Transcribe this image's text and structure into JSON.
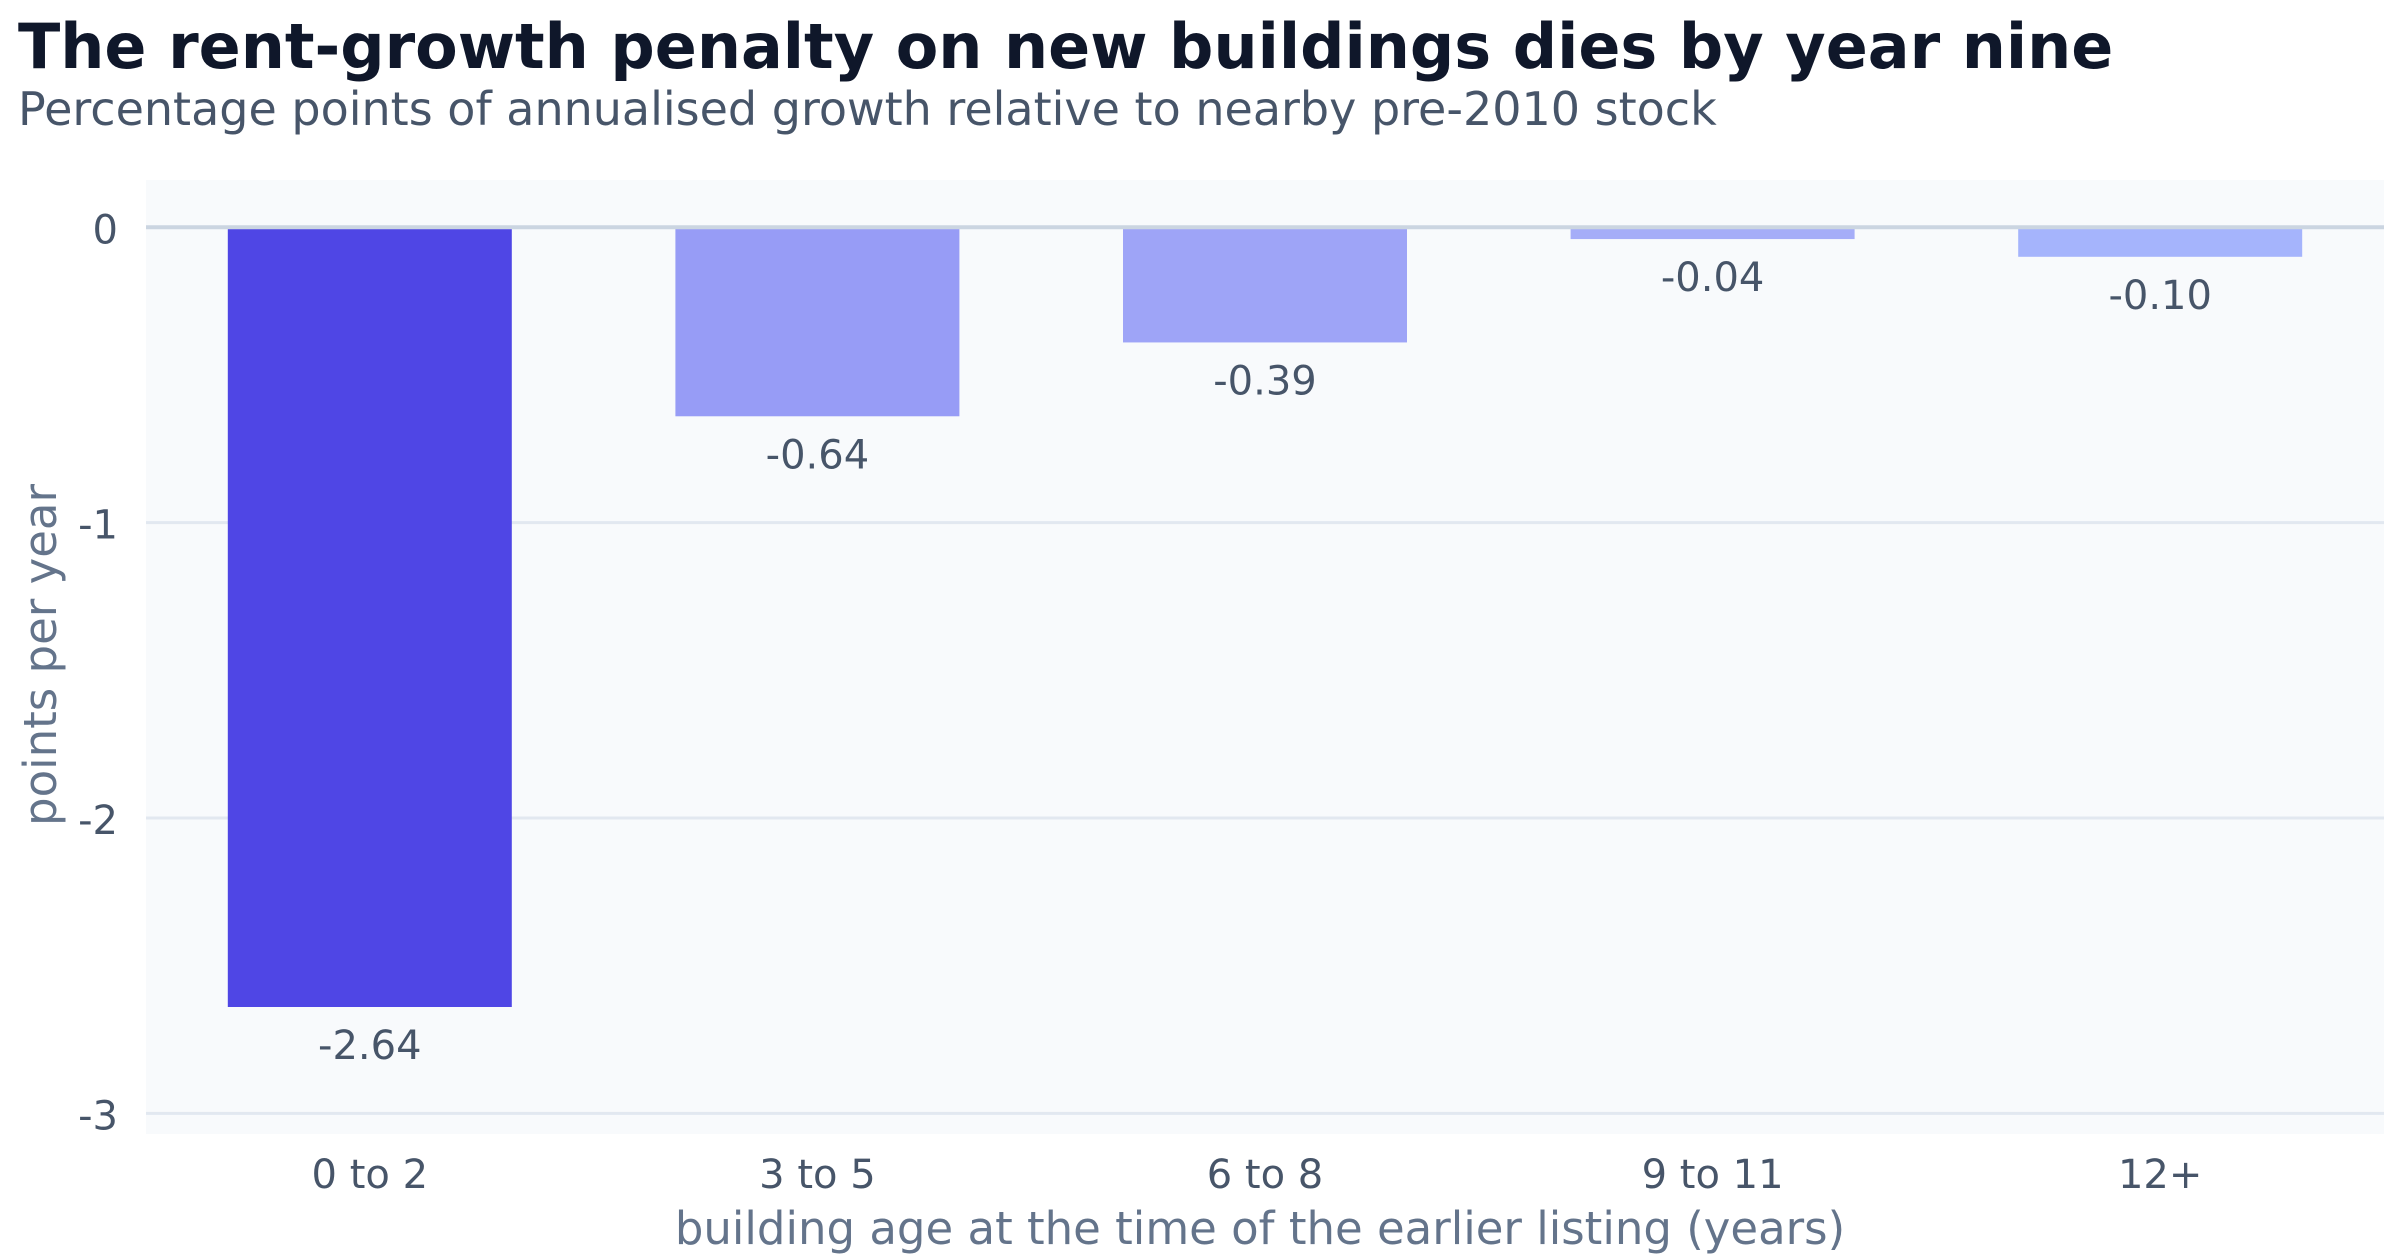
{
  "chart_data": {
    "type": "bar",
    "title": "The rent-growth penalty on new buildings dies by year nine",
    "subtitle": "Percentage points of annualised growth relative to nearby pre-2010 stock",
    "xlabel": "building age at the time of the earlier listing (years)",
    "ylabel": "points per year",
    "categories": [
      "0 to 2",
      "3 to 5",
      "6 to 8",
      "9 to 11",
      "12+"
    ],
    "values": [
      -2.64,
      -0.64,
      -0.39,
      -0.04,
      -0.1
    ],
    "value_labels": [
      "-2.64",
      "-0.64",
      "-0.39",
      "-0.04",
      "-0.10"
    ],
    "ylim": [
      -3.07,
      0.16
    ],
    "yticks": [
      0,
      -1,
      -2,
      -3
    ],
    "ytick_labels": [
      "0",
      "-1",
      "-2",
      "-3"
    ],
    "grid": true,
    "legend": "none",
    "colors": {
      "highlight_bar": "#4f46e5",
      "bars": [
        "#4f46e5",
        "#979cf6",
        "#9ea4f7",
        "#a5adf8",
        "#a5b4fc"
      ],
      "plot_background": "#f8fafc",
      "gridline": "#e2e8f0",
      "zero_line": "#cbd5e1",
      "title": "#0f172a",
      "subtitle": "#475569",
      "axis_label": "#64748b",
      "tick_label": "#475569",
      "value_label": "#475569"
    }
  }
}
